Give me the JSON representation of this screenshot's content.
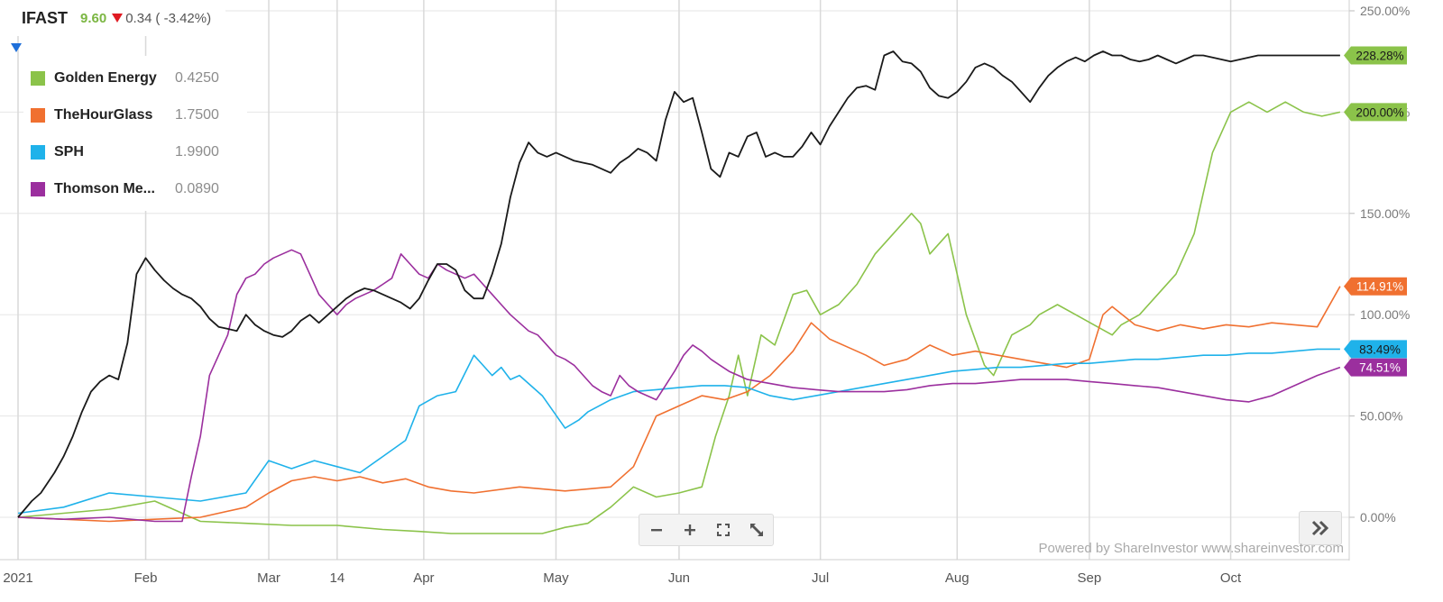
{
  "ticker": {
    "symbol": "IFAST",
    "price": "9.60",
    "change": "0.34",
    "change_pct": "( -3.42%)"
  },
  "legend": [
    {
      "name": "Golden Energy",
      "value": "0.4250",
      "color": "#8bc34a"
    },
    {
      "name": "TheHourGlass",
      "value": "1.7500",
      "color": "#f07030"
    },
    {
      "name": "SPH",
      "value": "1.9900",
      "color": "#1fb2ea"
    },
    {
      "name": "Thomson Me...",
      "value": "0.0890",
      "color": "#9b2f9e"
    }
  ],
  "footer": {
    "powered_by": "Powered by ShareInvestor www.shareinvestor.com"
  },
  "icons": {
    "menu": "caret-down-icon",
    "zoom_out": "minus-icon",
    "zoom_in": "plus-icon",
    "fit": "fit-screen-icon",
    "resize": "resize-diagonal-icon",
    "expand": "double-chevron-right-icon"
  },
  "chart_data": {
    "type": "line",
    "x_ticks": [
      "2021",
      "Feb",
      "Mar",
      "14",
      "Apr",
      "May",
      "Jun",
      "Jul",
      "Aug",
      "Sep",
      "Oct"
    ],
    "y_ticks": [
      "0.00%",
      "50.00%",
      "100.00%",
      "150.00%",
      "200.00%",
      "250.00%"
    ],
    "ylim": [
      -20,
      255
    ],
    "xlim": [
      0,
      292
    ],
    "grid": true,
    "x_tick_positions": [
      0,
      28,
      55,
      70,
      89,
      118,
      145,
      176,
      206,
      235,
      266
    ],
    "series": [
      {
        "name": "IFAST",
        "color": "#1a1a1a",
        "end_label": "228.28%",
        "label_color": "#8bc34a",
        "x": [
          0,
          3,
          5,
          8,
          10,
          12,
          14,
          16,
          18,
          20,
          22,
          24,
          26,
          28,
          30,
          32,
          34,
          36,
          38,
          40,
          42,
          44,
          46,
          48,
          50,
          52,
          54,
          56,
          58,
          60,
          62,
          64,
          66,
          68,
          70,
          72,
          74,
          76,
          78,
          80,
          82,
          84,
          86,
          88,
          90,
          92,
          94,
          96,
          98,
          100,
          102,
          104,
          106,
          108,
          110,
          112,
          114,
          116,
          118,
          120,
          122,
          124,
          126,
          128,
          130,
          132,
          134,
          136,
          138,
          140,
          142,
          144,
          146,
          148,
          150,
          152,
          154,
          156,
          158,
          160,
          162,
          164,
          166,
          168,
          170,
          172,
          174,
          176,
          178,
          180,
          182,
          184,
          186,
          188,
          190,
          192,
          194,
          196,
          198,
          200,
          202,
          204,
          206,
          208,
          210,
          212,
          214,
          216,
          218,
          220,
          222,
          224,
          226,
          228,
          230,
          232,
          234,
          236,
          238,
          240,
          242,
          244,
          246,
          248,
          250,
          252,
          254,
          256,
          258,
          260,
          262,
          264,
          266,
          268,
          270,
          272,
          274,
          276,
          278,
          280,
          282,
          284,
          286,
          288,
          290
        ],
        "y": [
          0,
          8,
          12,
          22,
          30,
          40,
          52,
          62,
          67,
          70,
          68,
          86,
          120,
          128,
          122,
          117,
          113,
          110,
          108,
          104,
          98,
          94,
          93,
          92,
          100,
          95,
          92,
          90,
          89,
          92,
          97,
          100,
          96,
          100,
          104,
          108,
          111,
          113,
          112,
          110,
          108,
          106,
          103,
          108,
          117,
          125,
          125,
          122,
          112,
          108,
          108,
          120,
          135,
          158,
          175,
          185,
          180,
          178,
          180,
          178,
          176,
          175,
          174,
          172,
          170,
          175,
          178,
          182,
          180,
          176,
          196,
          210,
          205,
          207,
          190,
          172,
          168,
          180,
          178,
          188,
          190,
          178,
          180,
          178,
          178,
          183,
          190,
          184,
          193,
          200,
          207,
          212,
          213,
          211,
          228,
          230,
          225,
          224,
          220,
          212,
          208,
          207,
          210,
          215,
          222,
          224,
          222,
          218,
          215,
          210,
          205,
          212,
          218,
          222,
          225,
          227,
          225,
          228,
          230,
          228,
          228,
          226,
          225,
          226,
          228,
          226,
          224,
          226,
          228,
          228,
          227,
          226,
          225,
          226,
          227,
          228,
          228,
          228,
          228,
          228,
          228,
          228,
          228,
          228,
          228
        ]
      },
      {
        "name": "Golden Energy",
        "color": "#8bc34a",
        "end_label": "200.00%",
        "label_color": "#8bc34a",
        "x": [
          0,
          10,
          20,
          30,
          36,
          40,
          50,
          60,
          70,
          80,
          88,
          95,
          105,
          115,
          120,
          125,
          130,
          135,
          140,
          145,
          150,
          153,
          156,
          158,
          160,
          163,
          166,
          170,
          173,
          176,
          180,
          184,
          188,
          192,
          196,
          198,
          200,
          204,
          208,
          212,
          214,
          218,
          222,
          224,
          228,
          232,
          236,
          240,
          242,
          246,
          250,
          254,
          258,
          260,
          262,
          266,
          270,
          274,
          278,
          282,
          286,
          290
        ],
        "y": [
          0,
          2,
          4,
          8,
          2,
          -2,
          -3,
          -4,
          -4,
          -6,
          -7,
          -8,
          -8,
          -8,
          -5,
          -3,
          5,
          15,
          10,
          12,
          15,
          40,
          60,
          80,
          60,
          90,
          85,
          110,
          112,
          100,
          105,
          115,
          130,
          140,
          150,
          145,
          130,
          140,
          100,
          75,
          70,
          90,
          95,
          100,
          105,
          100,
          95,
          90,
          95,
          100,
          110,
          120,
          140,
          160,
          180,
          200,
          205,
          200,
          205,
          200,
          198,
          200
        ]
      },
      {
        "name": "TheHourGlass",
        "color": "#f07030",
        "end_label": "114.91%",
        "label_color": "#f07030",
        "x": [
          0,
          10,
          20,
          30,
          40,
          50,
          55,
          60,
          65,
          70,
          75,
          80,
          85,
          90,
          95,
          100,
          110,
          120,
          130,
          135,
          138,
          140,
          145,
          150,
          155,
          160,
          165,
          170,
          174,
          178,
          182,
          186,
          190,
          195,
          200,
          205,
          210,
          215,
          220,
          225,
          230,
          235,
          238,
          240,
          245,
          250,
          255,
          260,
          265,
          270,
          275,
          280,
          285,
          290
        ],
        "y": [
          0,
          -1,
          -2,
          -1,
          0,
          5,
          12,
          18,
          20,
          18,
          20,
          17,
          19,
          15,
          13,
          12,
          15,
          13,
          15,
          25,
          40,
          50,
          55,
          60,
          58,
          62,
          70,
          82,
          96,
          88,
          84,
          80,
          75,
          78,
          85,
          80,
          82,
          80,
          78,
          76,
          74,
          78,
          100,
          104,
          95,
          92,
          95,
          93,
          95,
          94,
          96,
          95,
          94,
          114
        ]
      },
      {
        "name": "SPH",
        "color": "#1fb2ea",
        "end_label": "83.49%",
        "label_color": "#1fb2ea",
        "x": [
          0,
          10,
          20,
          30,
          40,
          50,
          55,
          60,
          65,
          70,
          75,
          80,
          85,
          88,
          92,
          96,
          100,
          102,
          104,
          106,
          108,
          110,
          115,
          120,
          123,
          125,
          130,
          135,
          140,
          145,
          150,
          155,
          160,
          165,
          170,
          175,
          180,
          185,
          190,
          195,
          200,
          205,
          210,
          215,
          220,
          225,
          230,
          235,
          240,
          245,
          250,
          255,
          260,
          265,
          270,
          275,
          280,
          285,
          290
        ],
        "y": [
          2,
          5,
          12,
          10,
          8,
          12,
          28,
          24,
          28,
          25,
          22,
          30,
          38,
          55,
          60,
          62,
          80,
          75,
          70,
          74,
          68,
          70,
          60,
          44,
          48,
          52,
          58,
          62,
          63,
          64,
          65,
          65,
          64,
          60,
          58,
          60,
          62,
          64,
          66,
          68,
          70,
          72,
          73,
          74,
          74,
          75,
          76,
          76,
          77,
          78,
          78,
          79,
          80,
          80,
          81,
          81,
          82,
          83,
          83
        ]
      },
      {
        "name": "Thomson Me...",
        "color": "#9b2f9e",
        "end_label": "74.51%",
        "label_color": "#9b2f9e",
        "x": [
          0,
          10,
          20,
          30,
          36,
          38,
          40,
          42,
          44,
          46,
          48,
          50,
          52,
          54,
          56,
          58,
          60,
          62,
          64,
          66,
          68,
          70,
          72,
          74,
          76,
          78,
          80,
          82,
          84,
          86,
          88,
          90,
          92,
          94,
          96,
          98,
          100,
          102,
          104,
          106,
          108,
          110,
          112,
          114,
          116,
          118,
          120,
          122,
          124,
          126,
          128,
          130,
          132,
          134,
          136,
          138,
          140,
          142,
          144,
          146,
          148,
          150,
          152,
          154,
          156,
          158,
          160,
          165,
          170,
          175,
          180,
          185,
          190,
          195,
          200,
          205,
          210,
          215,
          220,
          225,
          230,
          235,
          240,
          245,
          250,
          255,
          260,
          265,
          270,
          275,
          280,
          285,
          290
        ],
        "y": [
          0,
          -1,
          0,
          -2,
          -2,
          20,
          40,
          70,
          80,
          90,
          110,
          118,
          120,
          125,
          128,
          130,
          132,
          130,
          120,
          110,
          105,
          100,
          105,
          108,
          110,
          112,
          115,
          118,
          130,
          125,
          120,
          118,
          125,
          122,
          120,
          118,
          120,
          115,
          110,
          105,
          100,
          96,
          92,
          90,
          85,
          80,
          78,
          75,
          70,
          65,
          62,
          60,
          70,
          65,
          62,
          60,
          58,
          65,
          72,
          80,
          85,
          82,
          78,
          75,
          72,
          70,
          68,
          66,
          64,
          63,
          62,
          62,
          62,
          63,
          65,
          66,
          66,
          67,
          68,
          68,
          68,
          67,
          66,
          65,
          64,
          62,
          60,
          58,
          57,
          60,
          65,
          70,
          74
        ]
      }
    ]
  }
}
